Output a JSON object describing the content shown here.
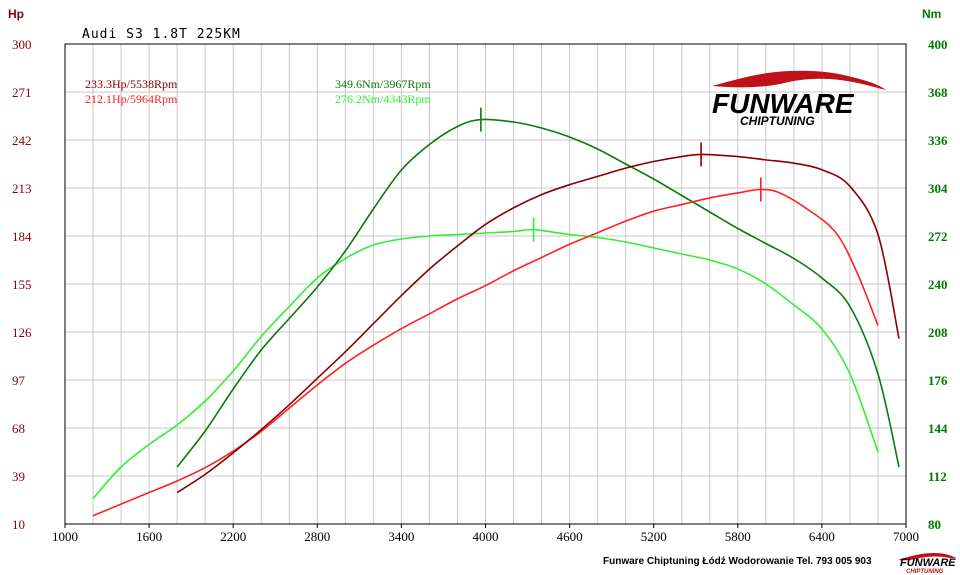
{
  "colors": {
    "hp_tuned": "#8b0000",
    "hp_stock": "#ff2020",
    "nm_tuned": "#0a7a0a",
    "nm_stock": "#33ee33",
    "left_axis": "#8b0000",
    "right_axis": "#007a00",
    "grid": "#c8c8c8",
    "logo_red": "#c0101a"
  },
  "chart_data": {
    "type": "line",
    "title": "Audi S3 1.8T 225KM",
    "y_left_unit": "Hp",
    "y_right_unit": "Nm",
    "x_range": [
      1000,
      7000
    ],
    "x_ticks": [
      "1000",
      "1600",
      "2200",
      "2800",
      "3400",
      "4000",
      "4600",
      "5200",
      "5800",
      "6400",
      "7000"
    ],
    "y_left_range": [
      10,
      300
    ],
    "y_left_ticks": [
      "10",
      "39",
      "68",
      "97",
      "126",
      "155",
      "184",
      "213",
      "242",
      "271",
      "300"
    ],
    "y_right_range": [
      80,
      400
    ],
    "y_right_ticks": [
      "80",
      "112",
      "144",
      "176",
      "208",
      "240",
      "272",
      "304",
      "336",
      "368",
      "400"
    ],
    "grid": "horizontal and vertical",
    "readouts": {
      "hp_tuned": "233.3Hp/5538Rpm",
      "hp_stock": "212.1Hp/5964Rpm",
      "nm_tuned": "349.6Nm/3967Rpm",
      "nm_stock": "276.2Nm/4343Rpm"
    },
    "series": [
      {
        "key": "hp_tuned",
        "axis": "left",
        "peak": [
          5538,
          233.3
        ],
        "points": [
          [
            1800,
            29
          ],
          [
            2000,
            40
          ],
          [
            2200,
            53
          ],
          [
            2400,
            67
          ],
          [
            2600,
            82
          ],
          [
            2800,
            98
          ],
          [
            3000,
            114
          ],
          [
            3200,
            131
          ],
          [
            3400,
            148
          ],
          [
            3600,
            164
          ],
          [
            3800,
            178
          ],
          [
            4000,
            191
          ],
          [
            4200,
            201
          ],
          [
            4400,
            209
          ],
          [
            4600,
            215
          ],
          [
            4800,
            220
          ],
          [
            5000,
            225
          ],
          [
            5200,
            229
          ],
          [
            5400,
            232
          ],
          [
            5538,
            233.3
          ],
          [
            5800,
            232
          ],
          [
            6000,
            230
          ],
          [
            6200,
            228
          ],
          [
            6400,
            224
          ],
          [
            6600,
            214
          ],
          [
            6800,
            185
          ],
          [
            6950,
            122
          ]
        ]
      },
      {
        "key": "hp_stock",
        "axis": "left",
        "peak": [
          5964,
          212.1
        ],
        "points": [
          [
            1200,
            15
          ],
          [
            1400,
            22
          ],
          [
            1600,
            29
          ],
          [
            1800,
            36
          ],
          [
            2000,
            44
          ],
          [
            2200,
            54
          ],
          [
            2400,
            66
          ],
          [
            2600,
            80
          ],
          [
            2800,
            94
          ],
          [
            3000,
            107
          ],
          [
            3200,
            118
          ],
          [
            3400,
            128
          ],
          [
            3600,
            137
          ],
          [
            3800,
            146
          ],
          [
            4000,
            154
          ],
          [
            4200,
            163
          ],
          [
            4400,
            171
          ],
          [
            4600,
            179
          ],
          [
            4800,
            186
          ],
          [
            5000,
            193
          ],
          [
            5200,
            199
          ],
          [
            5400,
            203
          ],
          [
            5600,
            207
          ],
          [
            5800,
            210
          ],
          [
            5964,
            212.1
          ],
          [
            6100,
            210
          ],
          [
            6300,
            200
          ],
          [
            6500,
            186
          ],
          [
            6650,
            162
          ],
          [
            6800,
            130
          ]
        ]
      },
      {
        "key": "nm_tuned",
        "axis": "right",
        "peak": [
          3967,
          349.6
        ],
        "points": [
          [
            1800,
            118
          ],
          [
            2000,
            142
          ],
          [
            2200,
            170
          ],
          [
            2400,
            196
          ],
          [
            2600,
            217
          ],
          [
            2800,
            238
          ],
          [
            3000,
            262
          ],
          [
            3200,
            290
          ],
          [
            3400,
            316
          ],
          [
            3600,
            333
          ],
          [
            3800,
            345
          ],
          [
            3967,
            349.6
          ],
          [
            4200,
            348
          ],
          [
            4400,
            344
          ],
          [
            4600,
            338
          ],
          [
            4800,
            330
          ],
          [
            5000,
            320
          ],
          [
            5200,
            310
          ],
          [
            5400,
            299
          ],
          [
            5600,
            288
          ],
          [
            5800,
            277
          ],
          [
            6000,
            267
          ],
          [
            6200,
            257
          ],
          [
            6400,
            244
          ],
          [
            6600,
            225
          ],
          [
            6800,
            180
          ],
          [
            6950,
            118
          ]
        ]
      },
      {
        "key": "nm_stock",
        "axis": "right",
        "peak": [
          4343,
          276.2
        ],
        "points": [
          [
            1200,
            97
          ],
          [
            1400,
            118
          ],
          [
            1600,
            133
          ],
          [
            1800,
            146
          ],
          [
            2000,
            162
          ],
          [
            2200,
            182
          ],
          [
            2400,
            205
          ],
          [
            2600,
            225
          ],
          [
            2800,
            244
          ],
          [
            3000,
            257
          ],
          [
            3200,
            266
          ],
          [
            3400,
            270
          ],
          [
            3600,
            272
          ],
          [
            3800,
            273
          ],
          [
            4000,
            274
          ],
          [
            4200,
            275
          ],
          [
            4343,
            276.2
          ],
          [
            4600,
            273
          ],
          [
            4800,
            271
          ],
          [
            5000,
            268
          ],
          [
            5200,
            264
          ],
          [
            5400,
            260
          ],
          [
            5600,
            256
          ],
          [
            5800,
            250
          ],
          [
            6000,
            240
          ],
          [
            6200,
            226
          ],
          [
            6400,
            210
          ],
          [
            6600,
            180
          ],
          [
            6800,
            128
          ]
        ]
      }
    ]
  },
  "logo": {
    "brand": "FUNWARE",
    "tagline": "CHIPTUNING"
  },
  "footer": {
    "text": "Funware Chiptuning Łódź Wodorowanie Tel. 793 005 903",
    "logo_brand": "FUNWARE",
    "logo_tagline": "CHIPTUNING"
  }
}
